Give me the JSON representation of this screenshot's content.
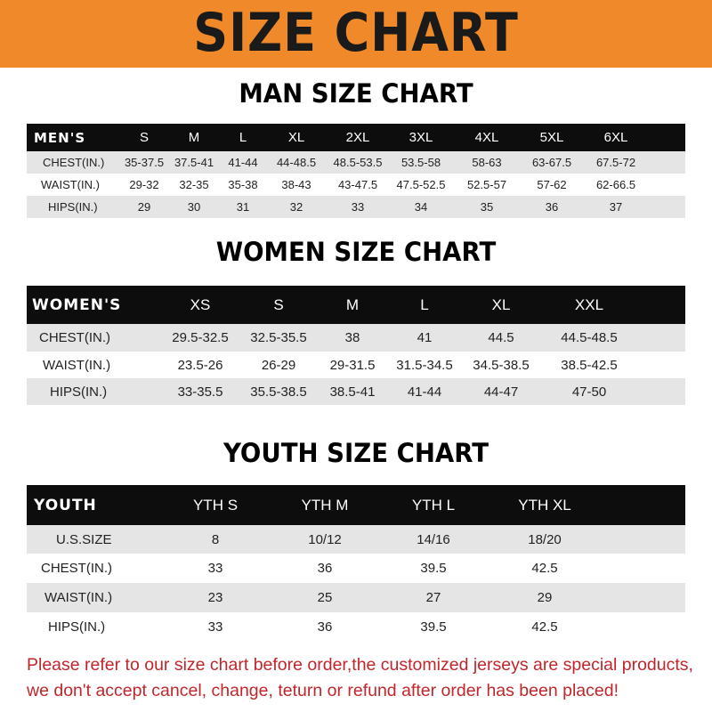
{
  "banner": {
    "title": "SIZE CHART",
    "color": "#f0892a"
  },
  "men": {
    "title": "MAN SIZE CHART",
    "header": [
      "MEN'S",
      "S",
      "M",
      "L",
      "XL",
      "2XL",
      "3XL",
      "4XL",
      "5XL",
      "6XL"
    ],
    "rows": [
      [
        "CHEST(IN.)",
        "35-37.5",
        "37.5-41",
        "41-44",
        "44-48.5",
        "48.5-53.5",
        "53.5-58",
        "58-63",
        "63-67.5",
        "67.5-72"
      ],
      [
        "WAIST(IN.)",
        "29-32",
        "32-35",
        "35-38",
        "38-43",
        "43-47.5",
        "47.5-52.5",
        "52.5-57",
        "57-62",
        "62-66.5"
      ],
      [
        "HIPS(IN.)",
        "29",
        "30",
        "31",
        "32",
        "33",
        "34",
        "35",
        "36",
        "37"
      ]
    ]
  },
  "women": {
    "title": "WOMEN SIZE CHART",
    "header": [
      "WOMEN'S",
      "XS",
      "S",
      "M",
      "L",
      "XL",
      "XXL"
    ],
    "rows": [
      [
        "CHEST(IN.)",
        "29.5-32.5",
        "32.5-35.5",
        "38",
        "41",
        "44.5",
        "44.5-48.5"
      ],
      [
        "WAIST(IN.)",
        "23.5-26",
        "26-29",
        "29-31.5",
        "31.5-34.5",
        "34.5-38.5",
        "38.5-42.5"
      ],
      [
        "HIPS(IN.)",
        "33-35.5",
        "35.5-38.5",
        "38.5-41",
        "41-44",
        "44-47",
        "47-50"
      ]
    ]
  },
  "youth": {
    "title": "YOUTH SIZE CHART",
    "header": [
      "YOUTH",
      "YTH S",
      "YTH M",
      "YTH L",
      "YTH XL"
    ],
    "rows": [
      [
        "U.S.SIZE",
        "8",
        "10/12",
        "14/16",
        "18/20"
      ],
      [
        "CHEST(IN.)",
        "33",
        "36",
        "39.5",
        "42.5"
      ],
      [
        "WAIST(IN.)",
        "23",
        "25",
        "27",
        "29"
      ],
      [
        "HIPS(IN.)",
        "33",
        "36",
        "39.5",
        "42.5"
      ]
    ]
  },
  "note": {
    "line1": "Please refer to our size chart before order,the customized jerseys are special products,",
    "line2": "we don't accept cancel, change, teturn or refund after order has been placed!",
    "color": "#c0262b"
  }
}
